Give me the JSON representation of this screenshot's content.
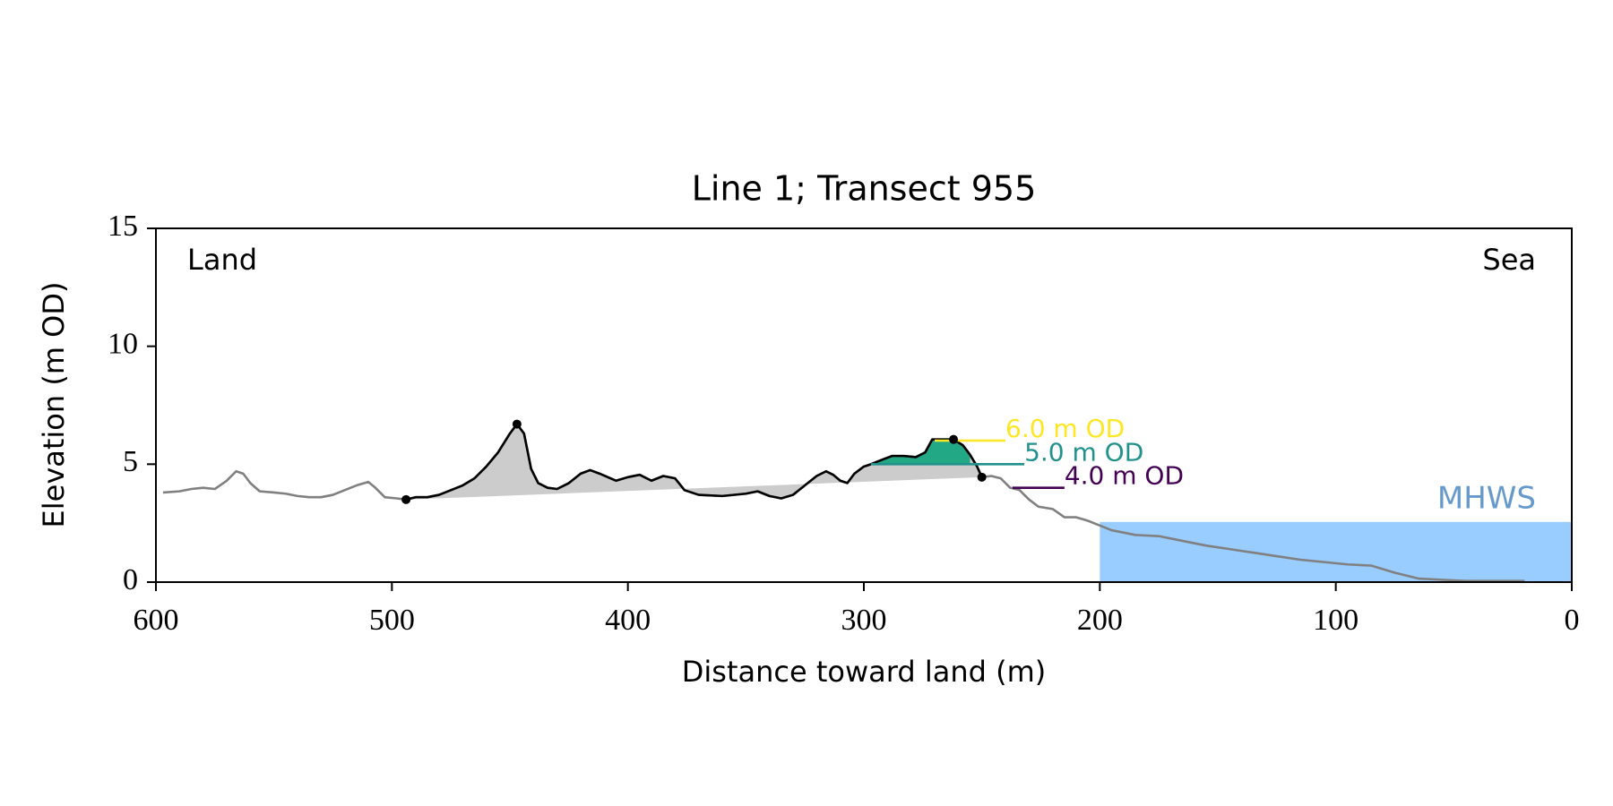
{
  "chart_data": {
    "type": "line",
    "title": "Line 1; Transect 955",
    "xlabel": "Distance toward land (m)",
    "ylabel": "Elevation (m OD)",
    "annotations": [
      {
        "text": "Land",
        "corner": "upper left"
      },
      {
        "text": "Sea",
        "corner": "upper right"
      }
    ],
    "xlim": [
      600,
      0
    ],
    "xticks": [
      600,
      500,
      400,
      300,
      200,
      100,
      0
    ],
    "ylim": [
      0,
      15
    ],
    "yticks": [
      0,
      5,
      10,
      15
    ],
    "x": [
      597,
      590,
      585,
      580,
      575,
      570,
      566,
      563,
      560,
      556,
      550,
      545,
      540,
      535,
      530,
      525,
      520,
      515,
      510,
      507,
      503,
      498,
      494,
      490,
      485,
      480,
      475,
      470,
      465,
      460,
      455,
      450,
      447,
      444,
      441,
      438,
      434,
      430,
      425,
      420,
      416,
      412,
      405,
      400,
      395,
      390,
      385,
      380,
      376,
      370,
      360,
      350,
      345,
      340,
      335,
      330,
      325,
      320,
      316,
      313,
      310,
      307,
      304,
      300,
      297,
      292,
      288,
      283,
      278,
      274,
      271,
      266,
      262,
      258,
      255,
      252,
      250,
      246,
      242,
      238,
      234,
      230,
      226,
      220,
      215,
      210,
      205,
      200,
      195,
      190,
      185,
      175,
      165,
      155,
      145,
      135,
      125,
      115,
      105,
      95,
      85,
      75,
      65,
      55,
      45,
      35,
      20
    ],
    "series": [
      {
        "color": "#808080",
        "values": [
          3.8,
          3.85,
          3.95,
          4.0,
          3.95,
          4.3,
          4.7,
          4.6,
          4.2,
          3.85,
          3.8,
          3.75,
          3.65,
          3.6,
          3.6,
          3.7,
          3.9,
          4.1,
          4.25,
          4.0,
          3.6,
          3.55,
          3.5,
          3.6,
          3.6,
          3.7,
          3.9,
          4.1,
          4.4,
          4.9,
          5.5,
          6.3,
          6.7,
          6.3,
          4.8,
          4.2,
          4.0,
          3.95,
          4.2,
          4.6,
          4.75,
          4.6,
          4.3,
          4.45,
          4.55,
          4.3,
          4.5,
          4.4,
          3.9,
          3.7,
          3.65,
          3.75,
          3.85,
          3.65,
          3.55,
          3.7,
          4.1,
          4.5,
          4.7,
          4.55,
          4.3,
          4.2,
          4.6,
          4.9,
          5.0,
          5.2,
          5.35,
          5.35,
          5.3,
          5.5,
          6.05,
          6.05,
          6.05,
          5.8,
          5.4,
          4.9,
          4.45,
          4.5,
          4.4,
          4.0,
          3.9,
          3.5,
          3.2,
          3.1,
          2.75,
          2.75,
          2.6,
          2.4,
          2.2,
          2.1,
          2.0,
          1.95,
          1.75,
          1.55,
          1.4,
          1.25,
          1.1,
          0.95,
          0.85,
          0.75,
          0.7,
          0.4,
          0.15,
          0.1,
          0.05,
          0.05,
          0.05
        ]
      },
      {
        "color": "#000000",
        "fill_color": "#cccccc",
        "values": [
          null,
          null,
          null,
          null,
          null,
          null,
          null,
          null,
          null,
          null,
          null,
          null,
          null,
          null,
          null,
          null,
          null,
          null,
          null,
          null,
          null,
          null,
          3.5,
          3.6,
          3.6,
          3.7,
          3.9,
          4.1,
          4.4,
          4.9,
          5.5,
          6.3,
          6.7,
          6.3,
          4.8,
          4.2,
          4.0,
          3.95,
          4.2,
          4.6,
          4.75,
          4.6,
          4.3,
          4.45,
          4.55,
          4.3,
          4.5,
          4.4,
          3.9,
          3.7,
          3.65,
          3.75,
          3.85,
          3.65,
          3.55,
          3.7,
          4.1,
          4.5,
          4.7,
          4.55,
          4.3,
          4.2,
          4.6,
          4.9,
          5.0,
          5.2,
          5.35,
          5.35,
          5.3,
          5.5,
          6.05,
          6.05,
          6.05,
          5.8,
          5.4,
          4.9,
          4.45,
          null,
          null,
          null,
          null,
          null,
          null,
          null,
          null,
          null,
          null,
          null,
          null,
          null,
          null,
          null,
          null,
          null,
          null,
          null,
          null,
          null,
          null,
          null,
          null,
          null,
          null,
          null,
          null,
          null,
          null
        ]
      }
    ],
    "points": {
      "color": "#000000",
      "x": [
        494,
        447,
        262,
        250
      ],
      "values": [
        3.5,
        6.7,
        6.05,
        4.45
      ]
    },
    "levels": [
      {
        "value": 6.0,
        "label": "6.0 m OD",
        "color": "#fde725",
        "xlim": [
          270,
          240
        ]
      },
      {
        "value": 5.0,
        "label": "5.0 m OD",
        "color": "#21918c",
        "xlim": [
          297,
          232
        ],
        "fill_color": "#22a884"
      },
      {
        "value": 4.0,
        "label": "4.0 m OD",
        "color": "#440154",
        "xlim": [
          237,
          215
        ]
      }
    ],
    "mhws": {
      "label": "MHWS",
      "value": 2.55,
      "xlim": [
        200,
        0
      ],
      "color": "#99ccff",
      "label_color": "#6699cc"
    }
  }
}
